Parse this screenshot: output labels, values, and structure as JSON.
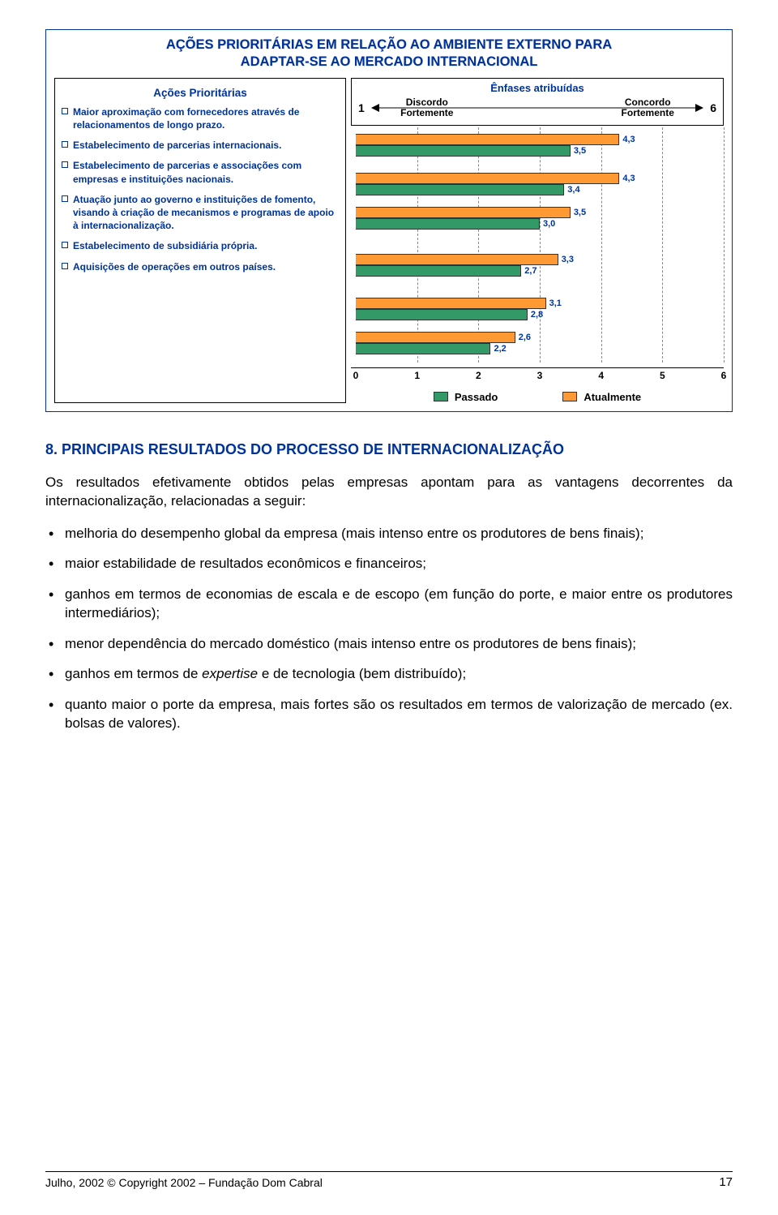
{
  "chart": {
    "title_line1": "AÇÕES PRIORITÁRIAS EM RELAÇÃO AO AMBIENTE EXTERNO PARA",
    "title_line2": "ADAPTAR-SE AO MERCADO INTERNACIONAL",
    "left_header": "Ações Prioritárias",
    "right_header": "Ênfases atribuídas",
    "scale_start": "1",
    "scale_end": "6",
    "scale_label_left": "Discordo Fortemente",
    "scale_label_right": "Concordo Fortemente",
    "actions": [
      "Maior aproximação com fornecedores através de relacionamentos de longo prazo.",
      "Estabelecimento de parcerias internacionais.",
      "Estabelecimento de parcerias e associações com empresas e instituições nacionais.",
      "Atuação junto ao governo e instituições de fomento, visando à criação de mecanismos e programas de apoio à internacionalização.",
      "Estabelecimento de subsidiária própria.",
      "Aquisições de operações em outros países."
    ],
    "groups": [
      {
        "atualmente": 4.3,
        "passado": 3.5
      },
      {
        "atualmente": 4.3,
        "passado": 3.4
      },
      {
        "atualmente": 3.5,
        "passado": 3.0
      },
      {
        "atualmente": 3.3,
        "passado": 2.7
      },
      {
        "atualmente": 3.1,
        "passado": 2.8
      },
      {
        "atualmente": 2.6,
        "passado": 2.2
      }
    ],
    "xticks": [
      0,
      1,
      2,
      3,
      4,
      5,
      6
    ],
    "xmax": 6,
    "colors": {
      "passado": "#339966",
      "atualmente": "#ff9933"
    },
    "legend_passado": "Passado",
    "legend_atualmente": "Atualmente"
  },
  "body": {
    "heading": "8. PRINCIPAIS RESULTADOS DO PROCESSO DE INTERNACIONALIZAÇÃO",
    "intro": "Os resultados efetivamente obtidos pelas empresas apontam para as vantagens decorrentes da internacionalização, relacionadas a seguir:",
    "bullets": [
      "melhoria do desempenho global da empresa (mais intenso entre os produtores de bens finais);",
      "maior estabilidade de resultados econômicos e financeiros;",
      "ganhos em termos de economias de escala e de escopo (em função do porte, e maior entre os produtores intermediários);",
      "menor dependência do mercado doméstico (mais intenso entre os produtores de bens finais);",
      "ganhos em termos de <i>expertise</i> e de tecnologia (bem distribuído);",
      "quanto maior o porte da empresa, mais fortes são os resultados em termos de valorização de mercado (ex. bolsas de valores)."
    ]
  },
  "footer": {
    "left": "Julho, 2002 © Copyright 2002 – Fundação Dom Cabral",
    "page": "17"
  }
}
